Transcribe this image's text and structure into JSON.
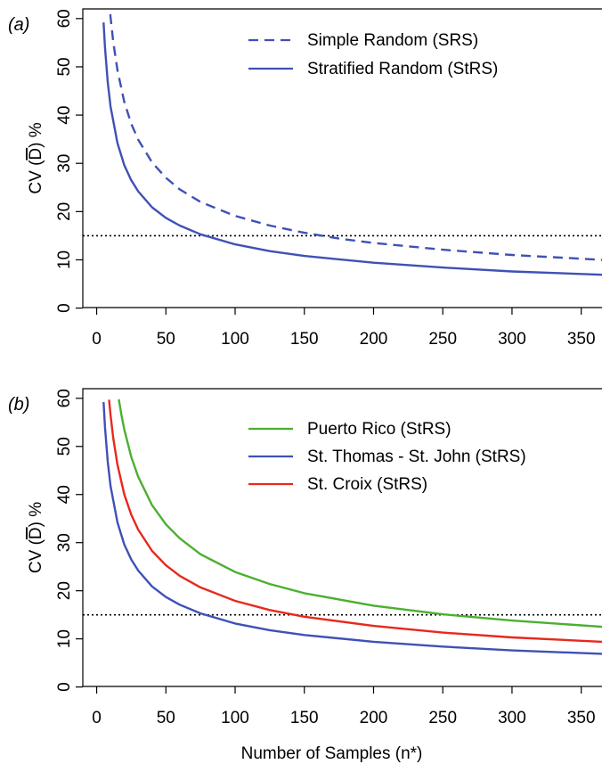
{
  "chart_data": [
    {
      "type": "line",
      "panel_label": "(a)",
      "xlabel": "",
      "ylabel": {
        "prefix": "CV (",
        "symbol": "D",
        "suffix": ") %"
      },
      "xlim": [
        -10,
        365
      ],
      "ylim": [
        -1,
        62
      ],
      "xticks": [
        0,
        50,
        100,
        150,
        200,
        250,
        300,
        350
      ],
      "yticks": [
        0,
        10,
        20,
        30,
        40,
        50,
        60
      ],
      "reference_line": {
        "y": 15,
        "style": "dotted",
        "color": "#000000"
      },
      "legend_position": "top-right",
      "series": [
        {
          "name": "Simple Random (SRS)",
          "color": "#3f51b5",
          "style": "dashed",
          "x": [
            8,
            10,
            12,
            15,
            20,
            25,
            30,
            40,
            50,
            60,
            75,
            100,
            125,
            150,
            175,
            200,
            250,
            300,
            365
          ],
          "y": [
            67.5,
            60.4,
            55.1,
            49.3,
            42.7,
            38.2,
            34.9,
            30.2,
            27.0,
            24.6,
            22.0,
            19.1,
            17.1,
            15.6,
            14.4,
            13.5,
            12.1,
            11.0,
            10.0
          ]
        },
        {
          "name": "Stratified Random (StRS)",
          "color": "#3f51b5",
          "style": "solid",
          "x": [
            5,
            6,
            8,
            10,
            15,
            20,
            25,
            30,
            40,
            50,
            60,
            75,
            100,
            125,
            150,
            200,
            250,
            300,
            365
          ],
          "y": [
            59.2,
            54.0,
            46.8,
            41.8,
            34.2,
            29.6,
            26.5,
            24.2,
            20.9,
            18.7,
            17.1,
            15.3,
            13.2,
            11.8,
            10.8,
            9.4,
            8.4,
            7.6,
            6.9
          ]
        }
      ]
    },
    {
      "type": "line",
      "panel_label": "(b)",
      "xlabel": "Number of Samples (n*)",
      "ylabel": {
        "prefix": "CV (",
        "symbol": "D",
        "suffix": ") %"
      },
      "xlim": [
        -10,
        365
      ],
      "ylim": [
        -1,
        62
      ],
      "xticks": [
        0,
        50,
        100,
        150,
        200,
        250,
        300,
        350
      ],
      "yticks": [
        0,
        10,
        20,
        30,
        40,
        50,
        60
      ],
      "reference_line": {
        "y": 15,
        "style": "dotted",
        "color": "#000000"
      },
      "legend_position": "top-right",
      "series": [
        {
          "name": "Puerto Rico (StRS)",
          "color": "#4caf2f",
          "style": "solid",
          "x": [
            16,
            18,
            20,
            25,
            30,
            40,
            50,
            60,
            75,
            100,
            125,
            150,
            200,
            250,
            300,
            365
          ],
          "y": [
            59.8,
            56.4,
            53.5,
            47.8,
            43.7,
            37.8,
            33.8,
            30.9,
            27.6,
            23.9,
            21.4,
            19.5,
            16.9,
            15.1,
            13.8,
            12.5
          ]
        },
        {
          "name": "St. Thomas - St. John (StRS)",
          "color": "#3f51b5",
          "style": "solid",
          "x": [
            5,
            6,
            8,
            10,
            15,
            20,
            25,
            30,
            40,
            50,
            60,
            75,
            100,
            125,
            150,
            200,
            250,
            300,
            365
          ],
          "y": [
            59.2,
            54.0,
            46.8,
            41.8,
            34.2,
            29.6,
            26.5,
            24.2,
            20.9,
            18.7,
            17.1,
            15.3,
            13.2,
            11.8,
            10.8,
            9.4,
            8.4,
            7.6,
            6.9
          ]
        },
        {
          "name": "St. Croix (StRS)",
          "color": "#e8281e",
          "style": "solid",
          "x": [
            9,
            10,
            12,
            15,
            20,
            25,
            30,
            40,
            50,
            60,
            75,
            100,
            125,
            150,
            200,
            250,
            300,
            365
          ],
          "y": [
            59.7,
            56.6,
            51.7,
            46.2,
            40.0,
            35.8,
            32.7,
            28.3,
            25.3,
            23.1,
            20.7,
            17.9,
            16.0,
            14.6,
            12.7,
            11.3,
            10.3,
            9.4
          ]
        }
      ]
    }
  ]
}
